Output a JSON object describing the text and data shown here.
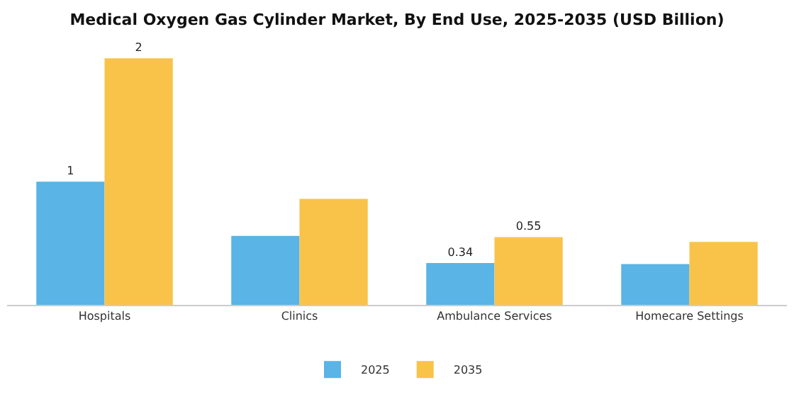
{
  "chart_data": {
    "type": "bar",
    "title": "Medical Oxygen Gas Cylinder Market, By End Use, 2025-2035 (USD Billion)",
    "categories": [
      "Hospitals",
      "Clinics",
      "Ambulance Services",
      "Homecare Settings"
    ],
    "series": [
      {
        "name": "2025",
        "color": "#5ab4e5",
        "values": [
          1,
          0.56,
          0.34,
          0.33
        ],
        "value_labels": [
          "1",
          null,
          "0.34",
          null
        ]
      },
      {
        "name": "2035",
        "color": "#f9c34a",
        "values": [
          2,
          0.86,
          0.55,
          0.51
        ],
        "value_labels": [
          "2",
          null,
          "0.55",
          null
        ]
      }
    ],
    "tick_labels": "x",
    "grid": false,
    "legend": "bottom"
  }
}
